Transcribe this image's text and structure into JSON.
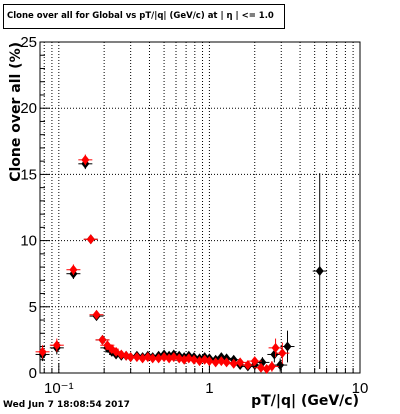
{
  "title": "Clone  over all for Global vs pT/|q| (GeV/c) at |  η | <= 1.0",
  "footer_timestamp": "Wed Jun  7 18:08:54 2017",
  "chart_data": {
    "type": "scatter",
    "title": "Clone  over all for Global vs pT/|q| (GeV/c) at |  η | <= 1.0",
    "xlabel": "pT/|q| (GeV/c)",
    "ylabel": "Clone  over all (%)",
    "xscale": "log",
    "xlim": [
      0.075,
      10
    ],
    "ylim": [
      0,
      25
    ],
    "grid": true,
    "x_tick_labels": [
      "10⁻¹",
      "1",
      "10"
    ],
    "y_tick_labels": [
      "0",
      "5",
      "10",
      "15",
      "20",
      "25"
    ],
    "series": [
      {
        "color": "#000000",
        "marker": "diamond",
        "points": [
          {
            "x": 0.078,
            "y": 1.4,
            "err": 0.5
          },
          {
            "x": 0.097,
            "y": 1.9,
            "err": 0.5
          },
          {
            "x": 0.125,
            "y": 7.5,
            "err": 0.4
          },
          {
            "x": 0.15,
            "y": 15.8,
            "err": 0.4
          },
          {
            "x": 0.163,
            "y": 10.1,
            "err": 0.3
          },
          {
            "x": 0.178,
            "y": 4.3,
            "err": 0.3
          },
          {
            "x": 0.195,
            "y": 2.5,
            "err": 0.2
          },
          {
            "x": 0.21,
            "y": 1.9,
            "err": 0.2
          },
          {
            "x": 0.225,
            "y": 1.6,
            "err": 0.2
          },
          {
            "x": 0.24,
            "y": 1.4,
            "err": 0.2
          },
          {
            "x": 0.26,
            "y": 1.3,
            "err": 0.2
          },
          {
            "x": 0.28,
            "y": 1.3,
            "err": 0.2
          },
          {
            "x": 0.3,
            "y": 1.2,
            "err": 0.2
          },
          {
            "x": 0.33,
            "y": 1.3,
            "err": 0.2
          },
          {
            "x": 0.36,
            "y": 1.2,
            "err": 0.2
          },
          {
            "x": 0.39,
            "y": 1.3,
            "err": 0.2
          },
          {
            "x": 0.42,
            "y": 1.2,
            "err": 0.2
          },
          {
            "x": 0.46,
            "y": 1.3,
            "err": 0.2
          },
          {
            "x": 0.5,
            "y": 1.4,
            "err": 0.2
          },
          {
            "x": 0.54,
            "y": 1.3,
            "err": 0.2
          },
          {
            "x": 0.58,
            "y": 1.4,
            "err": 0.2
          },
          {
            "x": 0.63,
            "y": 1.3,
            "err": 0.2
          },
          {
            "x": 0.68,
            "y": 1.2,
            "err": 0.2
          },
          {
            "x": 0.73,
            "y": 1.3,
            "err": 0.2
          },
          {
            "x": 0.79,
            "y": 1.2,
            "err": 0.2
          },
          {
            "x": 0.86,
            "y": 1.1,
            "err": 0.2
          },
          {
            "x": 0.93,
            "y": 1.2,
            "err": 0.2
          },
          {
            "x": 1.0,
            "y": 1.1,
            "err": 0.2
          },
          {
            "x": 1.1,
            "y": 1.0,
            "err": 0.2
          },
          {
            "x": 1.2,
            "y": 1.2,
            "err": 0.2
          },
          {
            "x": 1.3,
            "y": 1.1,
            "err": 0.2
          },
          {
            "x": 1.45,
            "y": 1.0,
            "err": 0.2
          },
          {
            "x": 1.6,
            "y": 0.6,
            "err": 0.3
          },
          {
            "x": 1.8,
            "y": 0.5,
            "err": 0.3
          },
          {
            "x": 2.0,
            "y": 0.6,
            "err": 0.3
          },
          {
            "x": 2.25,
            "y": 0.8,
            "err": 0.4
          },
          {
            "x": 2.7,
            "y": 1.4,
            "err": 0.6
          },
          {
            "x": 2.95,
            "y": 0.6,
            "err": 0.5
          },
          {
            "x": 3.3,
            "y": 2.0,
            "err": 1.2
          },
          {
            "x": 5.4,
            "y": 7.7,
            "err": 7.4
          }
        ]
      },
      {
        "color": "#ff0000",
        "marker": "diamond",
        "points": [
          {
            "x": 0.078,
            "y": 1.6,
            "err": 0.5
          },
          {
            "x": 0.097,
            "y": 2.1,
            "err": 0.5
          },
          {
            "x": 0.125,
            "y": 7.8,
            "err": 0.4
          },
          {
            "x": 0.15,
            "y": 16.1,
            "err": 0.4
          },
          {
            "x": 0.163,
            "y": 10.1,
            "err": 0.3
          },
          {
            "x": 0.178,
            "y": 4.4,
            "err": 0.3
          },
          {
            "x": 0.195,
            "y": 2.5,
            "err": 0.2
          },
          {
            "x": 0.21,
            "y": 2.1,
            "err": 0.2
          },
          {
            "x": 0.225,
            "y": 1.8,
            "err": 0.2
          },
          {
            "x": 0.24,
            "y": 1.6,
            "err": 0.2
          },
          {
            "x": 0.26,
            "y": 1.4,
            "err": 0.2
          },
          {
            "x": 0.28,
            "y": 1.3,
            "err": 0.2
          },
          {
            "x": 0.3,
            "y": 1.2,
            "err": 0.2
          },
          {
            "x": 0.33,
            "y": 1.2,
            "err": 0.2
          },
          {
            "x": 0.36,
            "y": 1.1,
            "err": 0.2
          },
          {
            "x": 0.39,
            "y": 1.2,
            "err": 0.2
          },
          {
            "x": 0.42,
            "y": 1.1,
            "err": 0.2
          },
          {
            "x": 0.46,
            "y": 1.1,
            "err": 0.2
          },
          {
            "x": 0.5,
            "y": 1.2,
            "err": 0.2
          },
          {
            "x": 0.54,
            "y": 1.1,
            "err": 0.2
          },
          {
            "x": 0.58,
            "y": 1.2,
            "err": 0.2
          },
          {
            "x": 0.63,
            "y": 1.1,
            "err": 0.2
          },
          {
            "x": 0.68,
            "y": 1.0,
            "err": 0.2
          },
          {
            "x": 0.73,
            "y": 1.1,
            "err": 0.2
          },
          {
            "x": 0.79,
            "y": 1.0,
            "err": 0.2
          },
          {
            "x": 0.86,
            "y": 0.9,
            "err": 0.2
          },
          {
            "x": 0.93,
            "y": 1.0,
            "err": 0.2
          },
          {
            "x": 1.0,
            "y": 0.9,
            "err": 0.2
          },
          {
            "x": 1.1,
            "y": 0.8,
            "err": 0.2
          },
          {
            "x": 1.2,
            "y": 0.9,
            "err": 0.2
          },
          {
            "x": 1.3,
            "y": 0.8,
            "err": 0.2
          },
          {
            "x": 1.45,
            "y": 0.7,
            "err": 0.2
          },
          {
            "x": 1.6,
            "y": 0.8,
            "err": 0.3
          },
          {
            "x": 1.8,
            "y": 0.6,
            "err": 0.3
          },
          {
            "x": 2.0,
            "y": 0.9,
            "err": 0.3
          },
          {
            "x": 2.2,
            "y": 0.4,
            "err": 0.3
          },
          {
            "x": 2.4,
            "y": 0.3,
            "err": 0.3
          },
          {
            "x": 2.6,
            "y": 0.5,
            "err": 0.4
          },
          {
            "x": 2.75,
            "y": 1.9,
            "err": 0.7
          },
          {
            "x": 3.05,
            "y": 1.5,
            "err": 0.8
          }
        ]
      }
    ]
  }
}
